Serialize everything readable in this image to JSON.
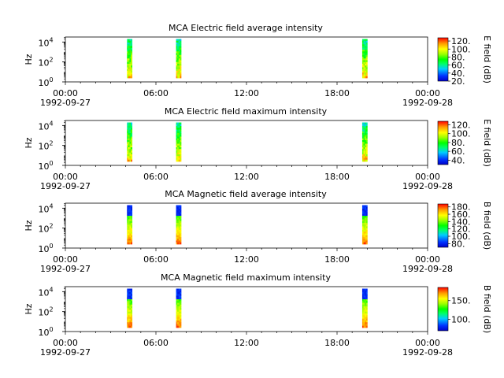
{
  "chart_data": [
    {
      "type": "heatmap",
      "title": "MCA  Electric field average intensity",
      "ylabel": "Hz",
      "y_scale": "log",
      "y_ticks": [
        "10",
        "10",
        "10"
      ],
      "y_tick_exponents": [
        "0",
        "2",
        "4"
      ],
      "x_ticks": [
        "00:00",
        "06:00",
        "12:00",
        "18:00",
        "00:00"
      ],
      "x_dates": {
        "start": "1992-09-27",
        "end": "1992-09-28"
      },
      "colorbar": {
        "label": "E field (dB)",
        "ticks": [
          "20.",
          "40.",
          "60.",
          "80.",
          "100.",
          "120."
        ],
        "range": [
          20,
          128
        ]
      },
      "data_intervals": [
        {
          "start": "04:05",
          "end": "04:25"
        },
        {
          "start": "07:20",
          "end": "07:40"
        },
        {
          "start": "19:40",
          "end": "20:00"
        }
      ],
      "freq_range_hz": [
        2.5,
        20000
      ]
    },
    {
      "type": "heatmap",
      "title": "MCA  Electric field maximum intensity",
      "ylabel": "Hz",
      "y_scale": "log",
      "y_ticks": [
        "10",
        "10",
        "10"
      ],
      "y_tick_exponents": [
        "0",
        "2",
        "4"
      ],
      "x_ticks": [
        "00:00",
        "06:00",
        "12:00",
        "18:00",
        "00:00"
      ],
      "x_dates": {
        "start": "1992-09-27",
        "end": "1992-09-28"
      },
      "colorbar": {
        "label": "E field (dB)",
        "ticks": [
          "40.",
          "60.",
          "80.",
          "100.",
          "120."
        ],
        "range": [
          30,
          128
        ]
      },
      "data_intervals": [
        {
          "start": "04:05",
          "end": "04:25"
        },
        {
          "start": "07:20",
          "end": "07:40"
        },
        {
          "start": "19:40",
          "end": "20:00"
        }
      ],
      "freq_range_hz": [
        2.5,
        20000
      ]
    },
    {
      "type": "heatmap",
      "title": "MCA  Magnetic field average intensity",
      "ylabel": "Hz",
      "y_scale": "log",
      "y_ticks": [
        "10",
        "10",
        "10"
      ],
      "y_tick_exponents": [
        "0",
        "2",
        "4"
      ],
      "x_ticks": [
        "00:00",
        "06:00",
        "12:00",
        "18:00",
        "00:00"
      ],
      "x_dates": {
        "start": "1992-09-27",
        "end": "1992-09-28"
      },
      "colorbar": {
        "label": "B field (dB)",
        "ticks": [
          "80.",
          "100.",
          "120.",
          "140.",
          "160.",
          "180."
        ],
        "range": [
          70,
          188
        ]
      },
      "data_intervals": [
        {
          "start": "04:05",
          "end": "04:25"
        },
        {
          "start": "07:20",
          "end": "07:40"
        },
        {
          "start": "19:40",
          "end": "20:00"
        }
      ],
      "freq_range_hz": [
        2.5,
        20000
      ]
    },
    {
      "type": "heatmap",
      "title": "MCA  Magnetic field maximum intensity",
      "ylabel": "Hz",
      "y_scale": "log",
      "y_ticks": [
        "10",
        "10",
        "10"
      ],
      "y_tick_exponents": [
        "0",
        "2",
        "4"
      ],
      "x_ticks": [
        "00:00",
        "06:00",
        "12:00",
        "18:00",
        "00:00"
      ],
      "x_dates": {
        "start": "1992-09-27",
        "end": "1992-09-28"
      },
      "colorbar": {
        "label": "B field (dB)",
        "ticks": [
          "100.",
          "150."
        ],
        "range": [
          70,
          185
        ]
      },
      "data_intervals": [
        {
          "start": "04:05",
          "end": "04:25"
        },
        {
          "start": "07:20",
          "end": "07:40"
        },
        {
          "start": "19:40",
          "end": "20:00"
        }
      ],
      "freq_range_hz": [
        2.5,
        20000
      ]
    }
  ],
  "colors": {
    "colormap": [
      "#0000c8",
      "#0033ff",
      "#00ccff",
      "#00ff66",
      "#00ff00",
      "#99ff00",
      "#ffff00",
      "#ff9900",
      "#ff0000"
    ],
    "axis": "#000000",
    "background": "#ffffff"
  }
}
